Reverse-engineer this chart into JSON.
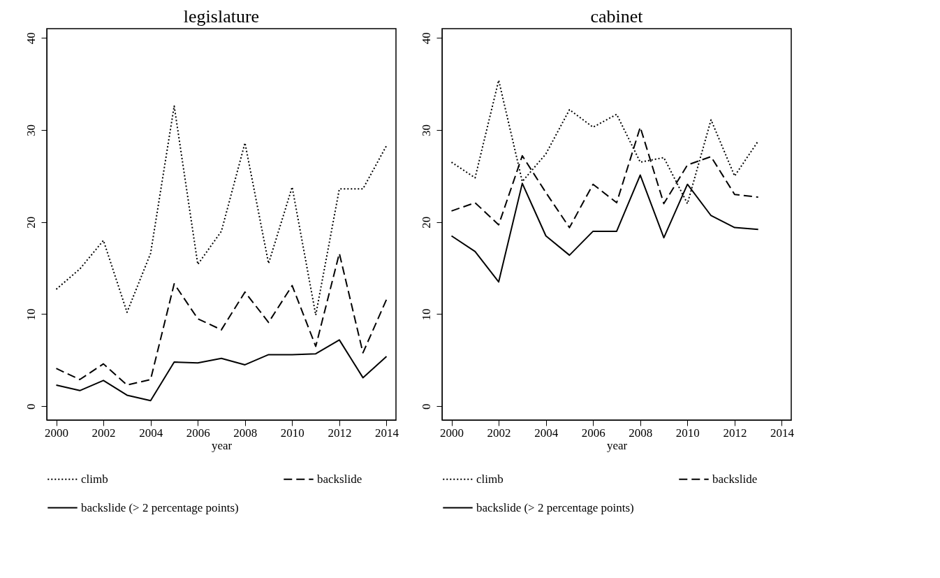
{
  "chart_data": [
    {
      "type": "line",
      "title": "legislature",
      "xlabel": "year",
      "x": [
        2000,
        2001,
        2002,
        2003,
        2004,
        2005,
        2006,
        2007,
        2008,
        2009,
        2010,
        2011,
        2012,
        2013,
        2014
      ],
      "xlim": [
        1999.6,
        2014.4
      ],
      "xticks": [
        2000,
        2002,
        2004,
        2006,
        2008,
        2010,
        2012,
        2014
      ],
      "ylim": [
        -1.5,
        41
      ],
      "yticks": [
        0,
        10,
        20,
        30,
        40
      ],
      "grid": false,
      "legend": "bottom",
      "marker": "none",
      "series": [
        {
          "name": "climb",
          "color": "#000000",
          "line_style": "dotted",
          "values": [
            12.7,
            14.9,
            18,
            10.2,
            16.6,
            32.6,
            15.4,
            19,
            28.6,
            15.5,
            23.8,
            9.9,
            23.6,
            23.6,
            28.3
          ]
        },
        {
          "name": "backslide",
          "color": "#000000",
          "line_style": "dashed",
          "values": [
            4.1,
            2.9,
            4.6,
            2.3,
            2.9,
            13.3,
            9.5,
            8.3,
            12.4,
            9.1,
            13.1,
            6.5,
            16.6,
            5.8,
            11.6
          ]
        },
        {
          "name": "backslide (> 2 percentage points)",
          "color": "#000000",
          "line_style": "solid",
          "values": [
            2.3,
            1.7,
            2.8,
            1.2,
            0.6,
            4.8,
            4.7,
            5.2,
            4.5,
            5.6,
            5.6,
            5.7,
            7.2,
            3.1,
            5.4
          ]
        }
      ]
    },
    {
      "type": "line",
      "title": "cabinet",
      "xlabel": "year",
      "x": [
        2000,
        2001,
        2002,
        2003,
        2004,
        2005,
        2006,
        2007,
        2008,
        2009,
        2010,
        2011,
        2012,
        2013
      ],
      "xlim": [
        1999.6,
        2014.4
      ],
      "xticks": [
        2000,
        2002,
        2004,
        2006,
        2008,
        2010,
        2012,
        2014
      ],
      "ylim": [
        -1.5,
        41
      ],
      "yticks": [
        0,
        10,
        20,
        30,
        40
      ],
      "grid": false,
      "legend": "bottom",
      "marker": "none",
      "series": [
        {
          "name": "climb",
          "color": "#000000",
          "line_style": "dotted",
          "values": [
            26.5,
            24.8,
            35.4,
            24.4,
            27.4,
            32.2,
            30.3,
            31.7,
            26.5,
            27.0,
            22.0,
            31.1,
            25.0,
            28.8
          ]
        },
        {
          "name": "backslide",
          "color": "#000000",
          "line_style": "dashed",
          "values": [
            21.2,
            22.1,
            19.7,
            27.2,
            23.2,
            19.4,
            24.1,
            22.1,
            30.3,
            22.0,
            26.2,
            27.1,
            23.0,
            22.7
          ]
        },
        {
          "name": "backslide (> 2 percentage points)",
          "color": "#000000",
          "line_style": "solid",
          "values": [
            18.5,
            16.8,
            13.5,
            24.2,
            18.5,
            16.4,
            19.0,
            19.0,
            25.1,
            18.3,
            24.1,
            20.7,
            19.4,
            19.2
          ]
        }
      ]
    }
  ]
}
